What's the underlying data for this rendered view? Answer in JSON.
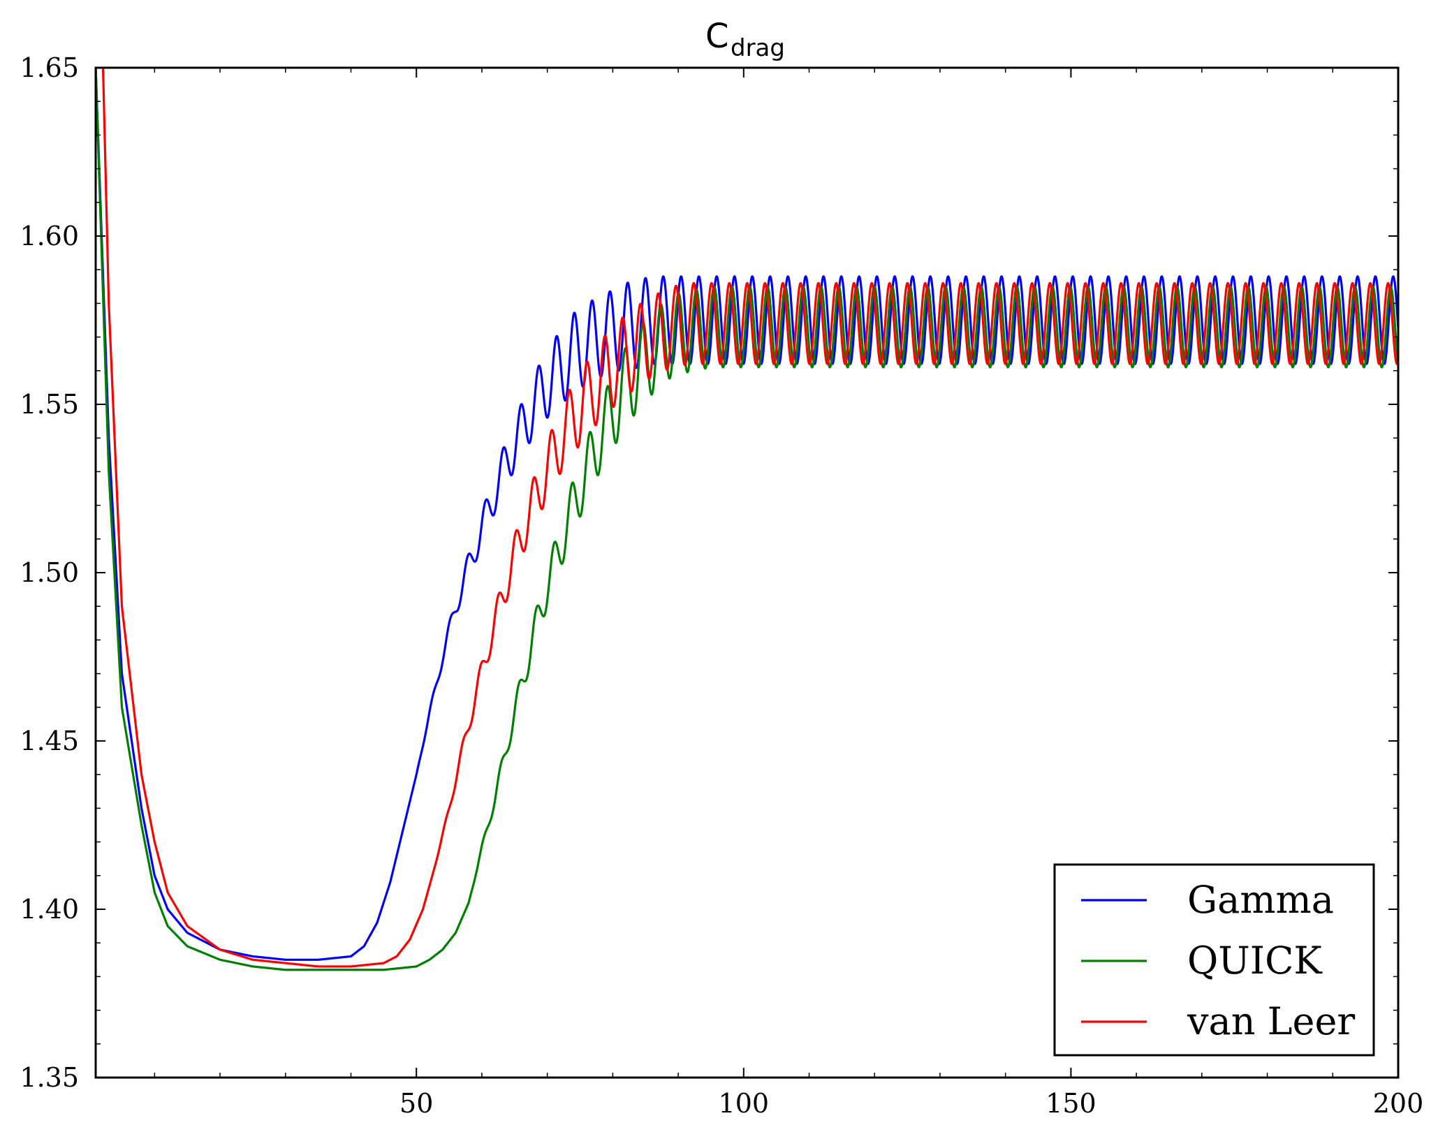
{
  "chart_data": {
    "type": "line",
    "title": {
      "main": "C",
      "subscript": "drag"
    },
    "xlabel": "",
    "ylabel": "",
    "xlim": [
      1,
      200
    ],
    "ylim": [
      1.35,
      1.65
    ],
    "x_ticks": [
      50,
      100,
      150,
      200
    ],
    "x_tick_labels": [
      "50",
      "100",
      "150",
      "200"
    ],
    "y_ticks": [
      1.35,
      1.4,
      1.45,
      1.5,
      1.55,
      1.6,
      1.65
    ],
    "y_tick_labels": [
      "1.35",
      "1.40",
      "1.45",
      "1.50",
      "1.55",
      "1.60",
      "1.65"
    ],
    "grid": false,
    "legend_position": "bottom-right",
    "series": [
      {
        "name": "Gamma",
        "color": "#0000ff",
        "x": [
          1,
          3,
          5,
          8,
          10,
          12,
          15,
          20,
          25,
          30,
          35,
          40,
          42,
          44,
          46,
          48,
          50,
          52,
          54,
          56,
          58,
          60,
          62,
          64,
          66,
          68,
          70,
          72,
          74,
          76,
          78,
          80,
          82,
          84,
          86,
          88,
          90,
          95,
          100,
          200
        ],
        "y": [
          1.65,
          1.54,
          1.47,
          1.43,
          1.41,
          1.4,
          1.393,
          1.388,
          1.386,
          1.385,
          1.385,
          1.386,
          1.389,
          1.396,
          1.408,
          1.424,
          1.44,
          1.458,
          1.475,
          1.49,
          1.502,
          1.513,
          1.524,
          1.534,
          1.542,
          1.55,
          1.556,
          1.561,
          1.565,
          1.568,
          1.57,
          1.572,
          1.573,
          1.574,
          1.575,
          1.575,
          1.575,
          1.575,
          1.575,
          1.575
        ],
        "osc_amp": [
          0,
          0,
          0,
          0,
          0,
          0,
          0,
          0,
          0,
          0,
          0,
          0,
          0,
          0,
          0,
          0,
          0,
          0.001,
          0.002,
          0.003,
          0.004,
          0.005,
          0.006,
          0.007,
          0.008,
          0.009,
          0.01,
          0.011,
          0.012,
          0.012,
          0.012,
          0.012,
          0.013,
          0.013,
          0.013,
          0.013,
          0.013,
          0.013,
          0.013,
          0.013
        ],
        "period": 2.72,
        "phase": 0.0
      },
      {
        "name": "QUICK",
        "color": "#008000",
        "x": [
          1,
          3,
          5,
          8,
          10,
          12,
          15,
          20,
          25,
          30,
          35,
          40,
          45,
          50,
          52,
          54,
          56,
          58,
          60,
          62,
          64,
          66,
          68,
          70,
          72,
          74,
          76,
          78,
          80,
          82,
          84,
          86,
          88,
          90,
          95,
          100,
          200
        ],
        "y": [
          1.65,
          1.53,
          1.46,
          1.425,
          1.405,
          1.395,
          1.389,
          1.385,
          1.383,
          1.382,
          1.382,
          1.382,
          1.382,
          1.383,
          1.385,
          1.388,
          1.393,
          1.402,
          1.418,
          1.433,
          1.45,
          1.466,
          1.482,
          1.496,
          1.508,
          1.52,
          1.53,
          1.54,
          1.548,
          1.555,
          1.561,
          1.565,
          1.569,
          1.571,
          1.573,
          1.573,
          1.573
        ],
        "osc_amp": [
          0,
          0,
          0,
          0,
          0,
          0,
          0,
          0,
          0,
          0,
          0,
          0,
          0,
          0,
          0,
          0,
          0,
          0,
          0.001,
          0.002,
          0.003,
          0.004,
          0.005,
          0.006,
          0.007,
          0.008,
          0.009,
          0.01,
          0.011,
          0.012,
          0.012,
          0.012,
          0.012,
          0.012,
          0.012,
          0.012,
          0.012
        ],
        "period": 2.72,
        "phase": 0.9
      },
      {
        "name": "van Leer",
        "color": "#ff0000",
        "x": [
          1,
          2,
          3,
          5,
          8,
          10,
          12,
          15,
          20,
          25,
          30,
          35,
          40,
          45,
          47,
          49,
          51,
          53,
          55,
          57,
          59,
          61,
          63,
          65,
          67,
          69,
          71,
          73,
          75,
          77,
          79,
          81,
          83,
          85,
          87,
          89,
          92,
          95,
          100,
          200
        ],
        "y": [
          1.66,
          1.66,
          1.58,
          1.49,
          1.44,
          1.42,
          1.405,
          1.395,
          1.388,
          1.385,
          1.384,
          1.383,
          1.383,
          1.384,
          1.386,
          1.391,
          1.4,
          1.414,
          1.43,
          1.447,
          1.463,
          1.478,
          1.492,
          1.505,
          1.516,
          1.526,
          1.535,
          1.543,
          1.549,
          1.554,
          1.559,
          1.563,
          1.566,
          1.569,
          1.571,
          1.573,
          1.574,
          1.574,
          1.574,
          1.574
        ],
        "osc_amp": [
          0,
          0,
          0,
          0,
          0,
          0,
          0,
          0,
          0,
          0,
          0,
          0,
          0,
          0,
          0,
          0,
          0,
          0,
          0.001,
          0.002,
          0.003,
          0.004,
          0.005,
          0.006,
          0.007,
          0.008,
          0.009,
          0.01,
          0.011,
          0.011,
          0.012,
          0.012,
          0.012,
          0.012,
          0.012,
          0.012,
          0.012,
          0.012,
          0.012,
          0.012
        ],
        "period": 2.72,
        "phase": 1.8
      }
    ]
  }
}
